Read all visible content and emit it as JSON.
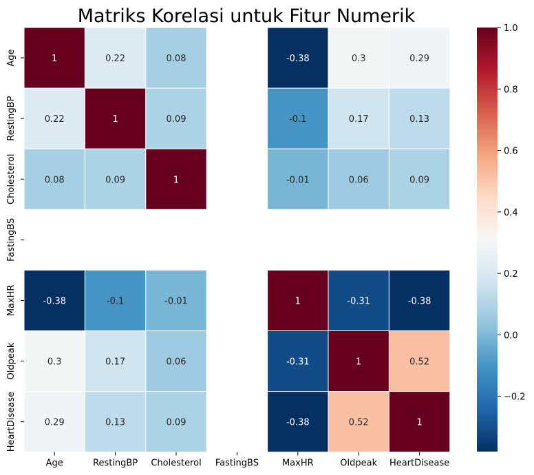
{
  "chart_data": {
    "type": "heatmap",
    "title": "Matriks Korelasi untuk Fitur Numerik",
    "xlabel": "",
    "ylabel": "",
    "variables": [
      "Age",
      "RestingBP",
      "Cholesterol",
      "FastingBS",
      "MaxHR",
      "Oldpeak",
      "HeartDisease"
    ],
    "matrix": [
      [
        1,
        0.22,
        0.08,
        null,
        -0.38,
        0.3,
        0.29
      ],
      [
        0.22,
        1,
        0.09,
        null,
        -0.1,
        0.17,
        0.13
      ],
      [
        0.08,
        0.09,
        1,
        null,
        -0.01,
        0.06,
        0.09
      ],
      [
        null,
        null,
        null,
        null,
        null,
        null,
        null
      ],
      [
        -0.38,
        -0.1,
        -0.01,
        null,
        1,
        -0.31,
        -0.38
      ],
      [
        0.3,
        0.17,
        0.06,
        null,
        -0.31,
        1,
        0.52
      ],
      [
        0.29,
        0.13,
        0.09,
        null,
        -0.38,
        0.52,
        1
      ]
    ],
    "colormap": "RdBu_r",
    "vmin": -0.38,
    "vmax": 1.0,
    "colorbar_ticks": [
      -0.2,
      0.0,
      0.2,
      0.4,
      0.6,
      0.8,
      1.0
    ],
    "colorbar_tick_labels": [
      "−0.2",
      "0.0",
      "0.2",
      "0.4",
      "0.6",
      "0.8",
      "1.0"
    ],
    "grid_line_color": "#ffffff",
    "annotations": true
  }
}
